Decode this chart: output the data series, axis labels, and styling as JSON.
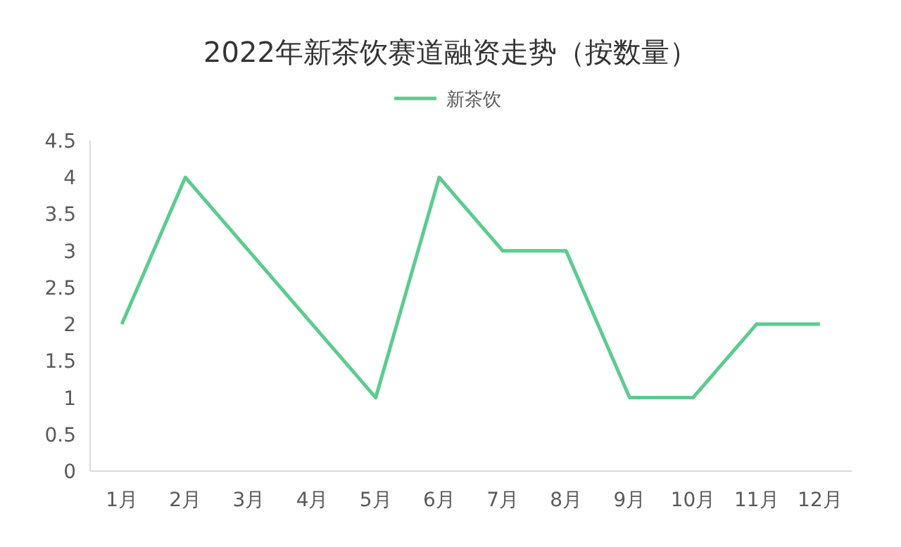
{
  "chart_data": {
    "type": "line",
    "title": "2022年新茶饮赛道融资走势（按数量）",
    "categories": [
      "1月",
      "2月",
      "3月",
      "4月",
      "5月",
      "6月",
      "7月",
      "8月",
      "9月",
      "10月",
      "11月",
      "12月"
    ],
    "series": [
      {
        "name": "新茶饮",
        "color": "#5ccb8f",
        "values": [
          2,
          4,
          3,
          2,
          1,
          4,
          3,
          3,
          1,
          1,
          2,
          2
        ]
      }
    ],
    "ylim": [
      0,
      4.5
    ],
    "yticks": [
      0,
      0.5,
      1,
      1.5,
      2,
      2.5,
      3,
      3.5,
      4,
      4.5
    ],
    "grid": false,
    "legend": "top",
    "marker": "none",
    "line_style": "solid"
  }
}
